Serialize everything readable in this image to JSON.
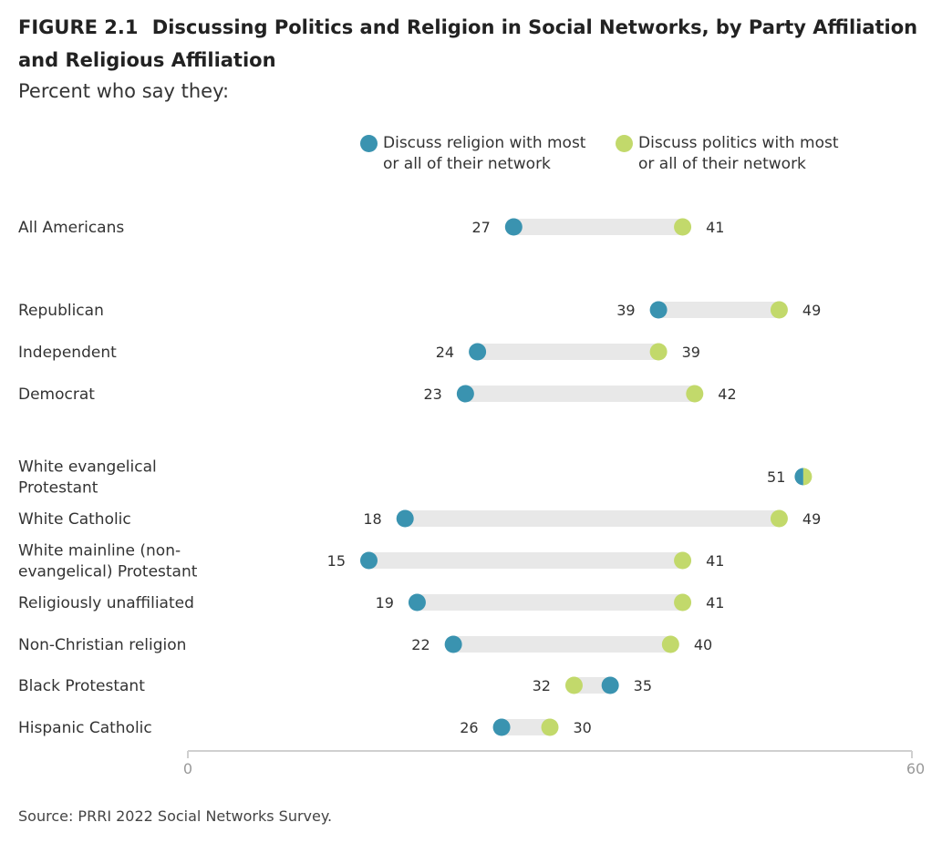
{
  "header": {
    "figure_number": "FIGURE 2.1",
    "title": "Discussing Politics and Religion in Social Networks, by Party Affiliation and Religious Affiliation",
    "subtitle": "Percent who say they:"
  },
  "legend": {
    "religion": {
      "label": "Discuss religion with most or all of their network",
      "color": "#3a93b0"
    },
    "politics": {
      "label": "Discuss politics with most or all of their network",
      "color": "#c2d96b"
    }
  },
  "source": "Source: PRRI 2022 Social Networks Survey.",
  "chart_data": {
    "type": "dumbbell",
    "xlim": [
      0,
      60
    ],
    "xticks": [
      "0",
      "60"
    ],
    "grid": false,
    "legend_position": "top",
    "colors": {
      "religion": "#3a93b0",
      "politics": "#c2d96b",
      "bar": "#e8e8e8",
      "axis": "#d0d0d0"
    },
    "series": [
      {
        "key": "religion",
        "name": "Discuss religion with most or all of their network"
      },
      {
        "key": "politics",
        "name": "Discuss politics with most or all of their network"
      }
    ],
    "rows": [
      {
        "label": [
          "All Americans"
        ],
        "religion": 27,
        "politics": 41
      },
      {
        "label": [
          "Republican"
        ],
        "religion": 39,
        "politics": 49
      },
      {
        "label": [
          "Independent"
        ],
        "religion": 24,
        "politics": 39
      },
      {
        "label": [
          "Democrat"
        ],
        "religion": 23,
        "politics": 42
      },
      {
        "label": [
          "White evangelical",
          "Protestant"
        ],
        "religion": 51,
        "politics": 51
      },
      {
        "label": [
          "White Catholic"
        ],
        "religion": 18,
        "politics": 49
      },
      {
        "label": [
          "White mainline (non-",
          "evangelical) Protestant"
        ],
        "religion": 15,
        "politics": 41
      },
      {
        "label": [
          "Religiously unaffiliated"
        ],
        "religion": 19,
        "politics": 41
      },
      {
        "label": [
          "Non-Christian religion"
        ],
        "religion": 22,
        "politics": 40
      },
      {
        "label": [
          "Black Protestant"
        ],
        "religion": 35,
        "politics": 32
      },
      {
        "label": [
          "Hispanic Catholic"
        ],
        "religion": 26,
        "politics": 30
      }
    ]
  }
}
